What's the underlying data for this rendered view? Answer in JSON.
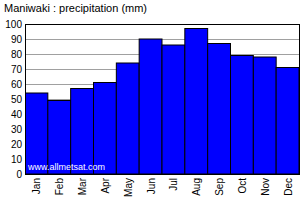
{
  "chart_data": {
    "type": "bar",
    "title": "Maniwaki : precipitation (mm)",
    "categories": [
      "Jan",
      "Feb",
      "Mar",
      "Apr",
      "May",
      "Jun",
      "Jul",
      "Aug",
      "Sep",
      "Oct",
      "Nov",
      "Dec"
    ],
    "values": [
      54,
      49,
      57,
      61,
      74,
      90,
      86,
      97,
      87,
      79,
      78,
      71
    ],
    "color": "#0000ff",
    "ylim": [
      0,
      100
    ],
    "yticks": [
      0,
      10,
      20,
      30,
      40,
      50,
      60,
      70,
      80,
      90,
      100
    ],
    "grid": true,
    "annotations": [
      "www.allmetsat.com"
    ]
  }
}
